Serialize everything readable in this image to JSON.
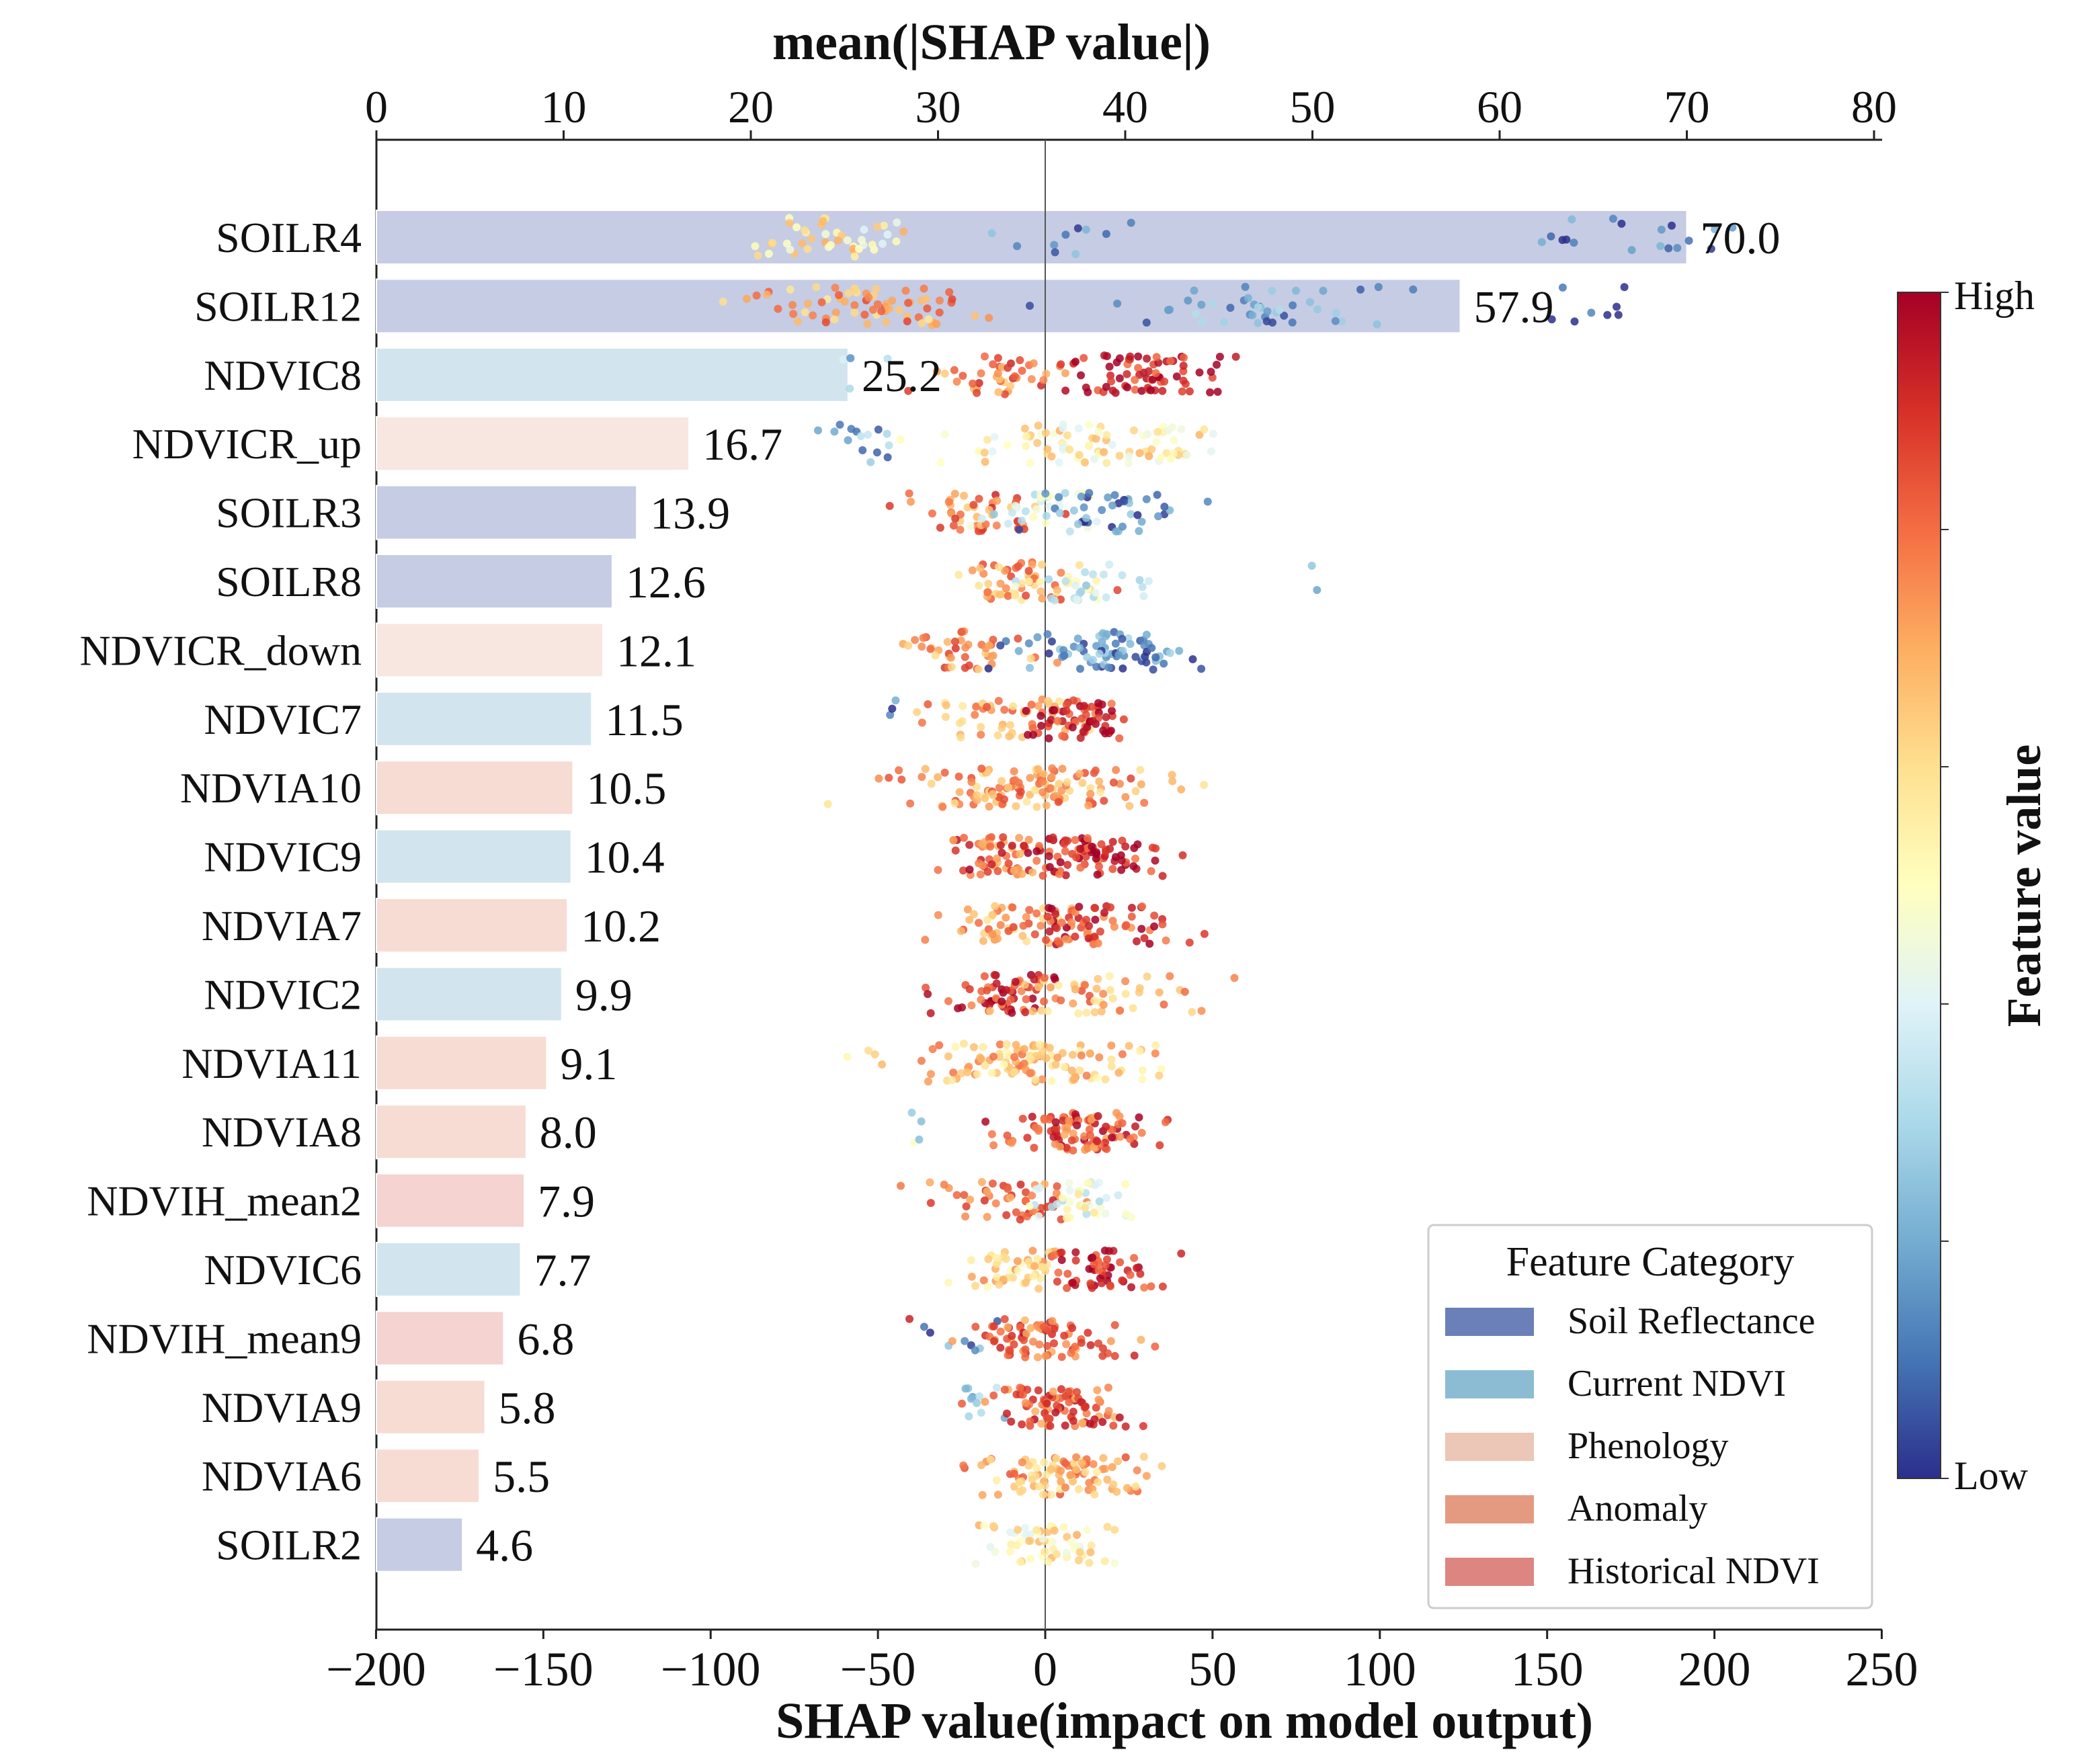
{
  "chart_data": {
    "type": "bar",
    "title": "",
    "top_axis": {
      "label": "mean(|SHAP value|)",
      "range": [
        0,
        80
      ],
      "ticks": [
        "0",
        "10",
        "20",
        "30",
        "40",
        "50",
        "60",
        "70",
        "80"
      ]
    },
    "bottom_axis": {
      "label": "SHAP value(impact on model output)",
      "range": [
        -200,
        250
      ],
      "ticks": [
        "−200",
        "−150",
        "−100",
        "−50",
        "0",
        "50",
        "100",
        "150",
        "200",
        "250"
      ]
    },
    "features": [
      {
        "name": "SOILR4",
        "value": 70.0,
        "label": "70.0",
        "category": "Soil Reflectance"
      },
      {
        "name": "SOILR12",
        "value": 57.9,
        "label": "57.9",
        "category": "Soil Reflectance"
      },
      {
        "name": "NDVIC8",
        "value": 25.2,
        "label": "25.2",
        "category": "Current NDVI"
      },
      {
        "name": "NDVICR_up",
        "value": 16.7,
        "label": "16.7",
        "category": "Phenology"
      },
      {
        "name": "SOILR3",
        "value": 13.9,
        "label": "13.9",
        "category": "Soil Reflectance"
      },
      {
        "name": "SOILR8",
        "value": 12.6,
        "label": "12.6",
        "category": "Soil Reflectance"
      },
      {
        "name": "NDVICR_down",
        "value": 12.1,
        "label": "12.1",
        "category": "Phenology"
      },
      {
        "name": "NDVIC7",
        "value": 11.5,
        "label": "11.5",
        "category": "Current NDVI"
      },
      {
        "name": "NDVIA10",
        "value": 10.5,
        "label": "10.5",
        "category": "Anomaly"
      },
      {
        "name": "NDVIC9",
        "value": 10.4,
        "label": "10.4",
        "category": "Current NDVI"
      },
      {
        "name": "NDVIA7",
        "value": 10.2,
        "label": "10.2",
        "category": "Anomaly"
      },
      {
        "name": "NDVIC2",
        "value": 9.9,
        "label": "9.9",
        "category": "Current NDVI"
      },
      {
        "name": "NDVIA11",
        "value": 9.1,
        "label": "9.1",
        "category": "Anomaly"
      },
      {
        "name": "NDVIA8",
        "value": 8.0,
        "label": "8.0",
        "category": "Anomaly"
      },
      {
        "name": "NDVIH_mean2",
        "value": 7.9,
        "label": "7.9",
        "category": "Historical NDVI"
      },
      {
        "name": "NDVIC6",
        "value": 7.7,
        "label": "7.7",
        "category": "Current NDVI"
      },
      {
        "name": "NDVIH_mean9",
        "value": 6.8,
        "label": "6.8",
        "category": "Historical NDVI"
      },
      {
        "name": "NDVIA9",
        "value": 5.8,
        "label": "5.8",
        "category": "Anomaly"
      },
      {
        "name": "NDVIA6",
        "value": 5.5,
        "label": "5.5",
        "category": "Anomaly"
      },
      {
        "name": "SOILR2",
        "value": 4.6,
        "label": "4.6",
        "category": "Soil Reflectance"
      }
    ],
    "beeswarm": [
      {
        "feature": "SOILR4",
        "clusters": [
          {
            "c": -62,
            "s": 12,
            "n": 45,
            "v": 0.55
          },
          {
            "c": 15,
            "s": 15,
            "n": 10,
            "v": 0.12
          },
          {
            "c": 170,
            "s": 20,
            "n": 18,
            "v": 0.08
          }
        ]
      },
      {
        "feature": "SOILR12",
        "clusters": [
          {
            "c": -55,
            "s": 18,
            "n": 70,
            "v": 0.72
          },
          {
            "c": 65,
            "s": 20,
            "n": 45,
            "v": 0.18
          },
          {
            "c": 165,
            "s": 10,
            "n": 8,
            "v": 0.08
          }
        ]
      },
      {
        "feature": "NDVIC8",
        "clusters": [
          {
            "c": -58,
            "s": 4,
            "n": 5,
            "v": 0.3
          },
          {
            "c": -12,
            "s": 10,
            "n": 45,
            "v": 0.78
          },
          {
            "c": 30,
            "s": 12,
            "n": 70,
            "v": 0.95
          }
        ]
      },
      {
        "feature": "NDVICR_up",
        "clusters": [
          {
            "c": -52,
            "s": 8,
            "n": 15,
            "v": 0.2
          },
          {
            "c": 15,
            "s": 22,
            "n": 90,
            "v": 0.55
          }
        ]
      },
      {
        "feature": "SOILR3",
        "clusters": [
          {
            "c": -18,
            "s": 10,
            "n": 45,
            "v": 0.78
          },
          {
            "c": 0,
            "s": 10,
            "n": 30,
            "v": 0.4
          },
          {
            "c": 20,
            "s": 12,
            "n": 40,
            "v": 0.12
          }
        ]
      },
      {
        "feature": "SOILR8",
        "clusters": [
          {
            "c": -10,
            "s": 10,
            "n": 55,
            "v": 0.72
          },
          {
            "c": 12,
            "s": 10,
            "n": 35,
            "v": 0.4
          },
          {
            "c": 78,
            "s": 4,
            "n": 2,
            "v": 0.15
          }
        ]
      },
      {
        "feature": "NDVICR_down",
        "clusters": [
          {
            "c": -22,
            "s": 12,
            "n": 45,
            "v": 0.75
          },
          {
            "c": 18,
            "s": 12,
            "n": 80,
            "v": 0.15
          }
        ]
      },
      {
        "feature": "NDVIC7",
        "clusters": [
          {
            "c": -46,
            "s": 2,
            "n": 3,
            "v": 0.08
          },
          {
            "c": -15,
            "s": 12,
            "n": 55,
            "v": 0.7
          },
          {
            "c": 10,
            "s": 7,
            "n": 60,
            "v": 0.92
          }
        ]
      },
      {
        "feature": "NDVIA10",
        "clusters": [
          {
            "c": -5,
            "s": 20,
            "n": 130,
            "v": 0.72
          }
        ]
      },
      {
        "feature": "NDVIC9",
        "clusters": [
          {
            "c": -12,
            "s": 9,
            "n": 60,
            "v": 0.82
          },
          {
            "c": 15,
            "s": 10,
            "n": 80,
            "v": 0.93
          }
        ]
      },
      {
        "feature": "NDVIA7",
        "clusters": [
          {
            "c": -12,
            "s": 10,
            "n": 50,
            "v": 0.72
          },
          {
            "c": 15,
            "s": 12,
            "n": 70,
            "v": 0.87
          }
        ]
      },
      {
        "feature": "NDVIC2",
        "clusters": [
          {
            "c": -12,
            "s": 9,
            "n": 60,
            "v": 0.9
          },
          {
            "c": 15,
            "s": 14,
            "n": 50,
            "v": 0.7
          }
        ]
      },
      {
        "feature": "NDVIA11",
        "clusters": [
          {
            "c": -5,
            "s": 18,
            "n": 120,
            "v": 0.65
          }
        ]
      },
      {
        "feature": "NDVIA8",
        "clusters": [
          {
            "c": -41,
            "s": 2,
            "n": 4,
            "v": 0.35
          },
          {
            "c": 8,
            "s": 10,
            "n": 100,
            "v": 0.85
          }
        ]
      },
      {
        "feature": "NDVIH_mean2",
        "clusters": [
          {
            "c": -10,
            "s": 10,
            "n": 50,
            "v": 0.82
          },
          {
            "c": 10,
            "s": 8,
            "n": 40,
            "v": 0.45
          }
        ]
      },
      {
        "feature": "NDVIC6",
        "clusters": [
          {
            "c": -8,
            "s": 8,
            "n": 50,
            "v": 0.65
          },
          {
            "c": 18,
            "s": 8,
            "n": 60,
            "v": 0.93
          }
        ]
      },
      {
        "feature": "NDVIH_mean9",
        "clusters": [
          {
            "c": -25,
            "s": 6,
            "n": 8,
            "v": 0.12
          },
          {
            "c": 0,
            "s": 12,
            "n": 80,
            "v": 0.82
          }
        ]
      },
      {
        "feature": "NDVIA9",
        "clusters": [
          {
            "c": -20,
            "s": 5,
            "n": 10,
            "v": 0.25
          },
          {
            "c": 3,
            "s": 10,
            "n": 90,
            "v": 0.83
          }
        ]
      },
      {
        "feature": "NDVIA6",
        "clusters": [
          {
            "c": 5,
            "s": 12,
            "n": 100,
            "v": 0.7
          }
        ]
      },
      {
        "feature": "SOILR2",
        "clusters": [
          {
            "c": 0,
            "s": 10,
            "n": 60,
            "v": 0.55
          }
        ]
      }
    ],
    "legend": {
      "title": "Feature Category",
      "position": "lower-right",
      "items": [
        {
          "label": "Soil Reflectance",
          "color": "#6b80b8"
        },
        {
          "label": "Current NDVI",
          "color": "#8bbcd4"
        },
        {
          "label": "Phenology",
          "color": "#ecc6b6"
        },
        {
          "label": "Anomaly",
          "color": "#e49a80"
        },
        {
          "label": "Historical NDVI",
          "color": "#dd8580"
        }
      ]
    },
    "category_bar_colors": {
      "Soil Reflectance": "#c5cce4",
      "Current NDVI": "#d2e5ee",
      "Phenology": "#f8e6e1",
      "Anomaly": "#f7dcd4",
      "Historical NDVI": "#f5d3d0"
    },
    "colorbar": {
      "title": "Feature value",
      "high_label": "High",
      "low_label": "Low",
      "colors": [
        "#2b2f8c",
        "#4575b4",
        "#74add1",
        "#abd9e9",
        "#e0f3f8",
        "#ffffbf",
        "#fee090",
        "#fdae61",
        "#f46d43",
        "#d73027",
        "#a50026"
      ]
    }
  }
}
